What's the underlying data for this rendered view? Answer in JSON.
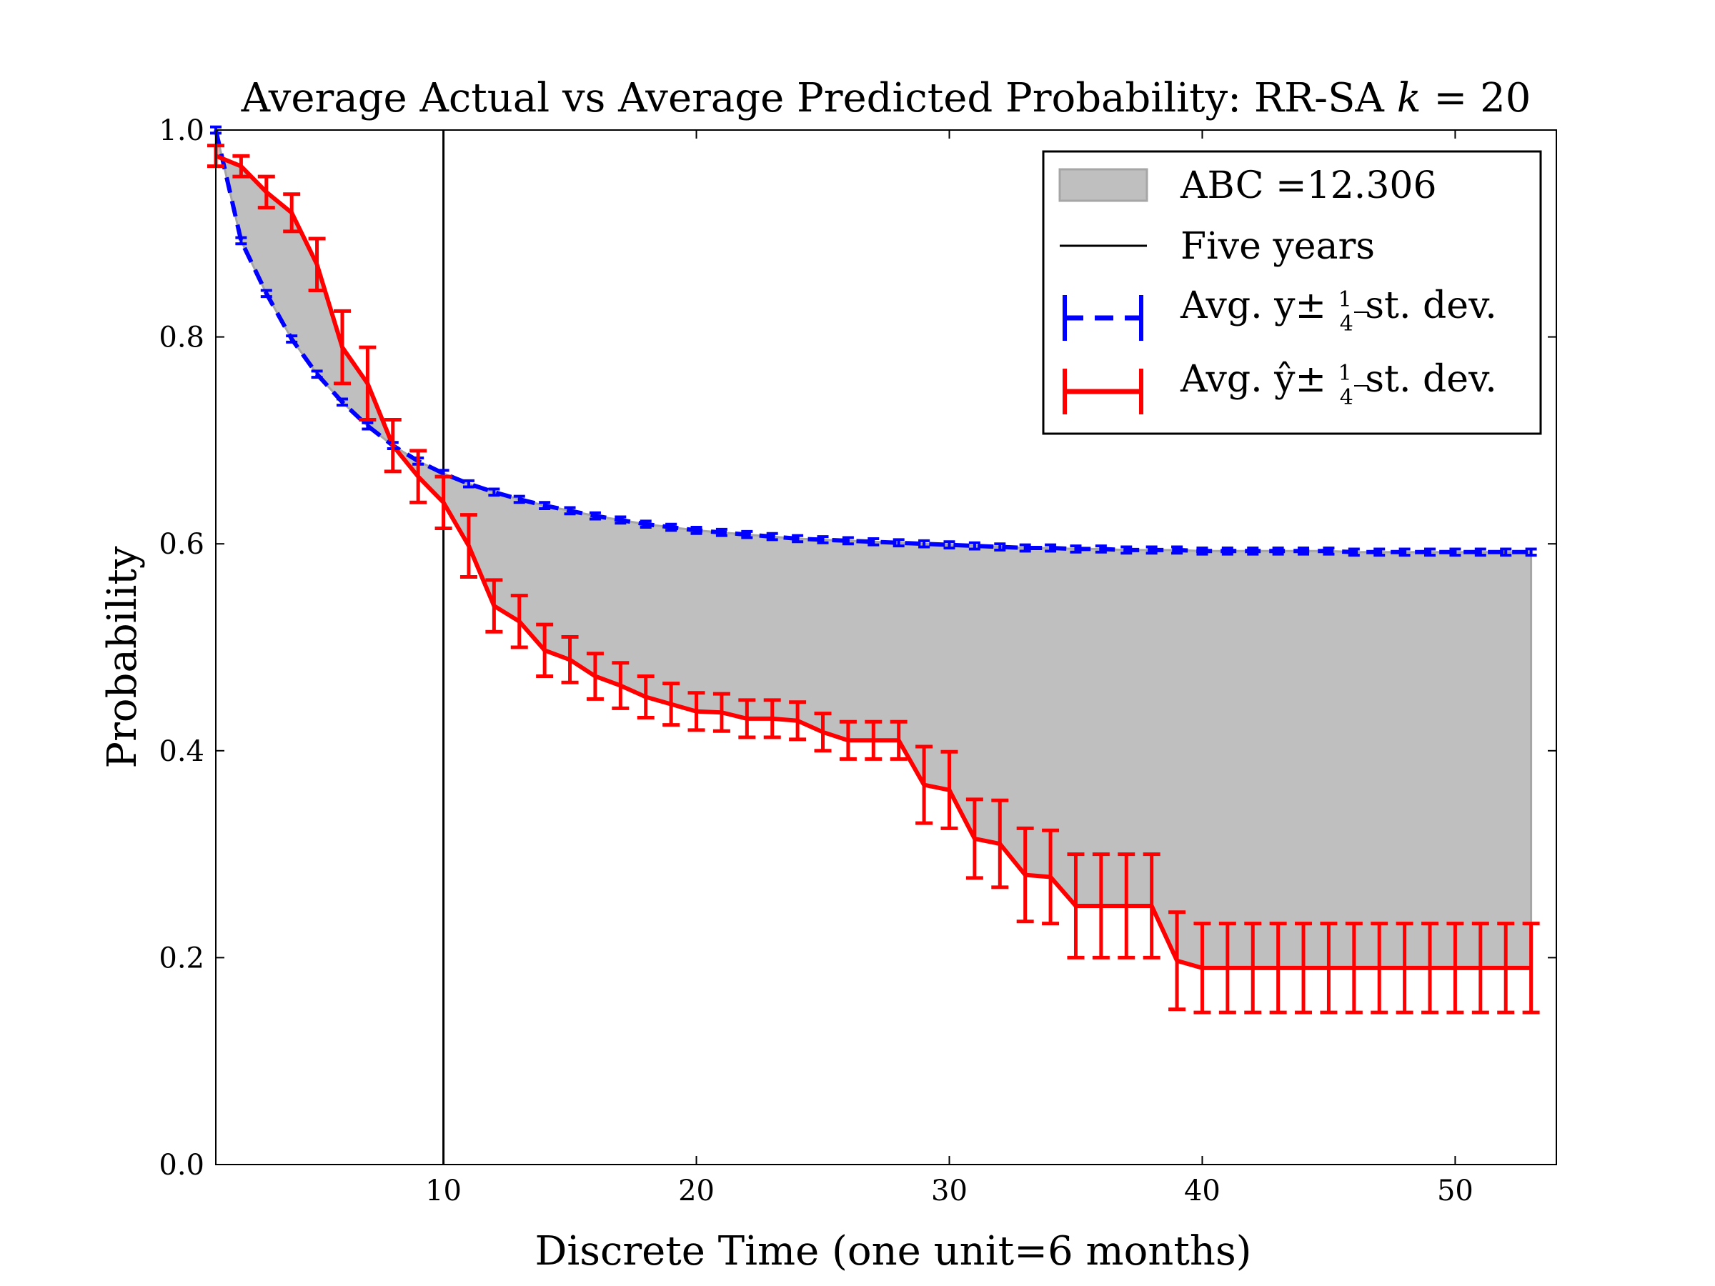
{
  "chart_data": {
    "type": "line",
    "title_text": "Average Actual vs Average Predicted Probability: RR-SA ",
    "title_k": "k",
    "title_eq": " = 20",
    "xlabel": "Discrete Time (one unit=6 months)",
    "ylabel": "Probability",
    "xlim": [
      1,
      54
    ],
    "ylim": [
      0,
      1
    ],
    "xticks": [
      10,
      20,
      30,
      40,
      50
    ],
    "yticks": [
      0.0,
      0.2,
      0.4,
      0.6,
      0.8,
      1.0
    ],
    "ytick_labels": [
      "0.0",
      "0.2",
      "0.4",
      "0.6",
      "0.8",
      "1.0"
    ],
    "vline": {
      "x": 10,
      "label": "Five years",
      "color": "#000000"
    },
    "x": [
      1,
      2,
      3,
      4,
      5,
      6,
      7,
      8,
      9,
      10,
      11,
      12,
      13,
      14,
      15,
      16,
      17,
      18,
      19,
      20,
      21,
      22,
      23,
      24,
      25,
      26,
      27,
      28,
      29,
      30,
      31,
      32,
      33,
      34,
      35,
      36,
      37,
      38,
      39,
      40,
      41,
      42,
      43,
      44,
      45,
      46,
      47,
      48,
      49,
      50,
      51,
      52,
      53
    ],
    "series": [
      {
        "name": "Avg. y",
        "color": "#0000ff",
        "style": "dashed",
        "values": [
          1.0,
          0.893,
          0.842,
          0.798,
          0.764,
          0.737,
          0.714,
          0.695,
          0.68,
          0.668,
          0.658,
          0.65,
          0.643,
          0.637,
          0.632,
          0.627,
          0.623,
          0.619,
          0.616,
          0.613,
          0.611,
          0.609,
          0.607,
          0.605,
          0.604,
          0.603,
          0.602,
          0.601,
          0.6,
          0.599,
          0.598,
          0.597,
          0.596,
          0.596,
          0.595,
          0.595,
          0.594,
          0.594,
          0.594,
          0.593,
          0.593,
          0.593,
          0.593,
          0.593,
          0.593,
          0.592,
          0.592,
          0.592,
          0.592,
          0.592,
          0.592,
          0.592,
          0.592
        ],
        "err": [
          0.003,
          0.003,
          0.003,
          0.003,
          0.003,
          0.003,
          0.003,
          0.003,
          0.003,
          0.003,
          0.003,
          0.003,
          0.003,
          0.003,
          0.003,
          0.003,
          0.003,
          0.003,
          0.003,
          0.003,
          0.003,
          0.003,
          0.003,
          0.003,
          0.003,
          0.003,
          0.003,
          0.003,
          0.003,
          0.003,
          0.003,
          0.003,
          0.003,
          0.003,
          0.003,
          0.003,
          0.003,
          0.003,
          0.003,
          0.003,
          0.003,
          0.003,
          0.003,
          0.003,
          0.003,
          0.003,
          0.003,
          0.003,
          0.003,
          0.003,
          0.003,
          0.003,
          0.003
        ]
      },
      {
        "name": "Avg. ŷ",
        "color": "#ff0000",
        "style": "solid",
        "values": [
          0.975,
          0.965,
          0.94,
          0.92,
          0.87,
          0.79,
          0.755,
          0.695,
          0.665,
          0.64,
          0.598,
          0.54,
          0.525,
          0.497,
          0.488,
          0.472,
          0.463,
          0.452,
          0.445,
          0.438,
          0.437,
          0.431,
          0.431,
          0.429,
          0.418,
          0.41,
          0.41,
          0.41,
          0.367,
          0.362,
          0.315,
          0.31,
          0.28,
          0.278,
          0.25,
          0.25,
          0.25,
          0.25,
          0.197,
          0.19,
          0.19,
          0.19,
          0.19,
          0.19,
          0.19,
          0.19,
          0.19,
          0.19,
          0.19,
          0.19,
          0.19,
          0.19,
          0.19
        ],
        "err": [
          0.01,
          0.01,
          0.015,
          0.018,
          0.025,
          0.035,
          0.035,
          0.025,
          0.025,
          0.025,
          0.03,
          0.025,
          0.025,
          0.025,
          0.022,
          0.022,
          0.022,
          0.02,
          0.02,
          0.018,
          0.018,
          0.018,
          0.018,
          0.018,
          0.018,
          0.018,
          0.018,
          0.018,
          0.037,
          0.037,
          0.038,
          0.042,
          0.045,
          0.045,
          0.05,
          0.05,
          0.05,
          0.05,
          0.047,
          0.043,
          0.043,
          0.043,
          0.043,
          0.043,
          0.043,
          0.043,
          0.043,
          0.043,
          0.043,
          0.043,
          0.043,
          0.043,
          0.043
        ]
      }
    ],
    "fill": {
      "label": "ABC =12.306",
      "color": "#bfbfbf"
    },
    "legend": {
      "position": "top-right",
      "entries": [
        {
          "key": "fill",
          "text": "ABC =12.306"
        },
        {
          "key": "vline",
          "text": "Five years"
        },
        {
          "key": "actual",
          "prefix": "Avg. y± ",
          "num": "1",
          "den": "4",
          "suffix": " st. dev."
        },
        {
          "key": "pred",
          "prefix": "Avg. ŷ± ",
          "num": "1",
          "den": "4",
          "suffix": " st. dev."
        }
      ]
    }
  }
}
